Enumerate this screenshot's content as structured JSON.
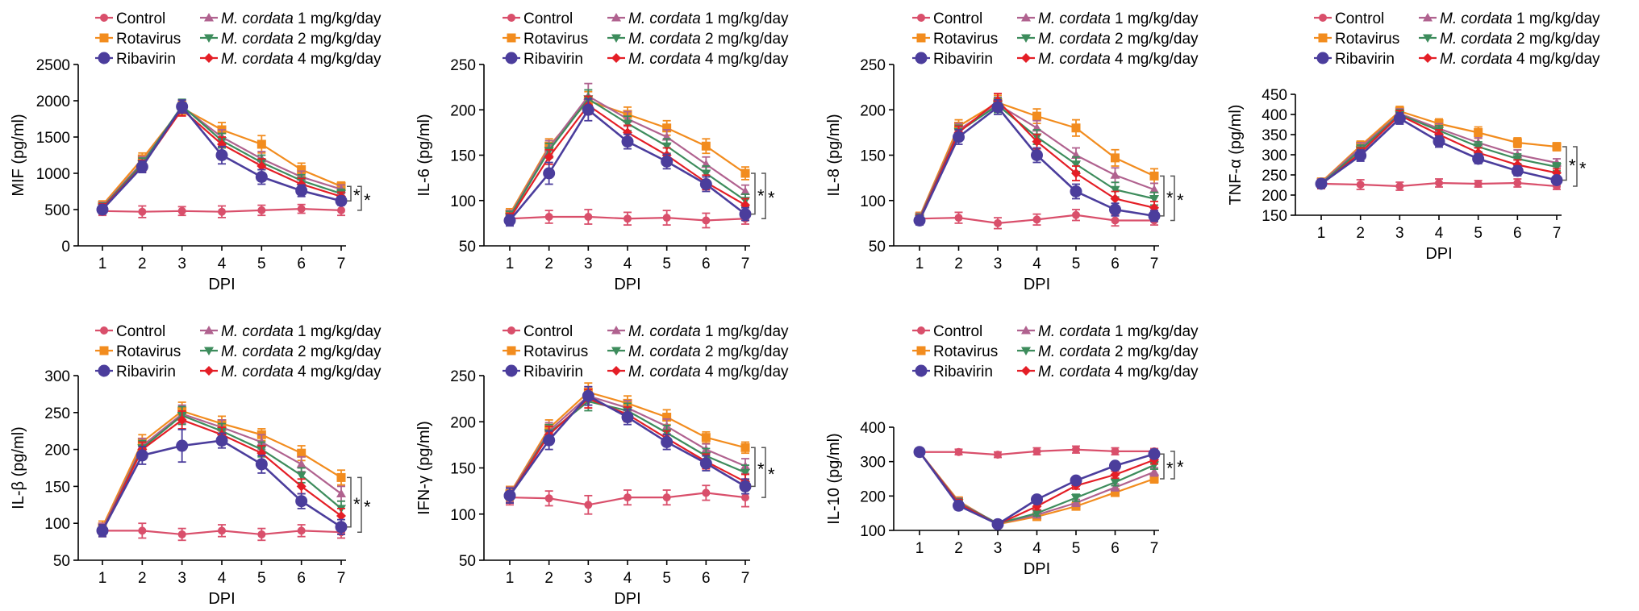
{
  "legend": {
    "entries": [
      {
        "key": "control",
        "label": "Control",
        "italic": "",
        "suffix": ""
      },
      {
        "key": "rota",
        "label": "Rotavirus",
        "italic": "",
        "suffix": ""
      },
      {
        "key": "riba",
        "label": "Ribavirin",
        "italic": "",
        "suffix": ""
      },
      {
        "key": "mc1",
        "label": "",
        "italic": "M. cordata",
        "suffix": " 1 mg/kg/day"
      },
      {
        "key": "mc2",
        "label": "",
        "italic": "M. cordata",
        "suffix": " 2 mg/kg/day"
      },
      {
        "key": "mc4",
        "label": "",
        "italic": "M. cordata",
        "suffix": " 4 mg/kg/day"
      }
    ]
  },
  "series_style": {
    "control": {
      "color": "#d94f6b",
      "marker": "circle"
    },
    "rota": {
      "color": "#f28c1e",
      "marker": "square"
    },
    "riba": {
      "color": "#4b3d9c",
      "marker": "bigcircle"
    },
    "mc1": {
      "color": "#b0628f",
      "marker": "triangle-up"
    },
    "mc2": {
      "color": "#3d8c5c",
      "marker": "triangle-down"
    },
    "mc4": {
      "color": "#e41e26",
      "marker": "diamond"
    }
  },
  "significance": "*",
  "chart_data": [
    {
      "type": "line",
      "xlabel": "DPI",
      "ylabel": "MIF (pg/ml)",
      "x": [
        1,
        2,
        3,
        4,
        5,
        6,
        7
      ],
      "ylim": [
        0,
        2500
      ],
      "yticks": [
        0,
        500,
        1000,
        1500,
        2000,
        2500
      ],
      "series": [
        {
          "key": "control",
          "values": [
            480,
            470,
            480,
            470,
            490,
            510,
            490
          ],
          "err": [
            60,
            80,
            60,
            80,
            70,
            60,
            70
          ]
        },
        {
          "key": "rota",
          "values": [
            560,
            1200,
            1900,
            1600,
            1400,
            1050,
            820
          ],
          "err": [
            60,
            80,
            90,
            100,
            120,
            90,
            60
          ]
        },
        {
          "key": "mc1",
          "values": [
            540,
            1150,
            1920,
            1500,
            1200,
            950,
            780
          ],
          "err": [
            60,
            80,
            90,
            100,
            100,
            80,
            60
          ]
        },
        {
          "key": "mc2",
          "values": [
            530,
            1130,
            1930,
            1450,
            1150,
            900,
            720
          ],
          "err": [
            60,
            80,
            90,
            100,
            100,
            80,
            60
          ]
        },
        {
          "key": "mc4",
          "values": [
            520,
            1100,
            1880,
            1400,
            1100,
            850,
            680
          ],
          "err": [
            60,
            80,
            90,
            100,
            100,
            80,
            60
          ]
        },
        {
          "key": "riba",
          "values": [
            500,
            1090,
            1920,
            1250,
            950,
            760,
            620
          ],
          "err": [
            60,
            80,
            90,
            120,
            100,
            80,
            60
          ]
        }
      ]
    },
    {
      "type": "line",
      "xlabel": "DPI",
      "ylabel": "IL-6 (pg/ml)",
      "x": [
        1,
        2,
        3,
        4,
        5,
        6,
        7
      ],
      "ylim": [
        50,
        250
      ],
      "yticks": [
        50,
        100,
        150,
        200,
        250
      ],
      "series": [
        {
          "key": "control",
          "values": [
            80,
            82,
            82,
            80,
            81,
            78,
            80
          ],
          "err": [
            6,
            7,
            8,
            7,
            8,
            8,
            6
          ]
        },
        {
          "key": "rota",
          "values": [
            85,
            160,
            210,
            195,
            180,
            160,
            130
          ],
          "err": [
            6,
            8,
            10,
            8,
            8,
            8,
            7
          ]
        },
        {
          "key": "mc1",
          "values": [
            83,
            158,
            215,
            190,
            170,
            140,
            110
          ],
          "err": [
            6,
            8,
            14,
            8,
            8,
            8,
            7
          ]
        },
        {
          "key": "mc2",
          "values": [
            82,
            155,
            212,
            185,
            160,
            130,
            100
          ],
          "err": [
            6,
            8,
            10,
            8,
            8,
            8,
            7
          ]
        },
        {
          "key": "mc4",
          "values": [
            80,
            148,
            205,
            175,
            150,
            120,
            95
          ],
          "err": [
            6,
            8,
            10,
            8,
            8,
            8,
            7
          ]
        },
        {
          "key": "riba",
          "values": [
            78,
            130,
            200,
            165,
            143,
            118,
            85
          ],
          "err": [
            6,
            12,
            12,
            8,
            8,
            8,
            7
          ]
        }
      ]
    },
    {
      "type": "line",
      "xlabel": "DPI",
      "ylabel": "IL-8 (pg/ml)",
      "x": [
        1,
        2,
        3,
        4,
        5,
        6,
        7
      ],
      "ylim": [
        50,
        250
      ],
      "yticks": [
        50,
        100,
        150,
        200,
        250
      ],
      "series": [
        {
          "key": "control",
          "values": [
            80,
            81,
            75,
            79,
            84,
            78,
            78
          ],
          "err": [
            5,
            6,
            6,
            6,
            6,
            6,
            5
          ]
        },
        {
          "key": "rota",
          "values": [
            82,
            182,
            208,
            193,
            180,
            147,
            127
          ],
          "err": [
            5,
            7,
            8,
            8,
            9,
            9,
            8
          ]
        },
        {
          "key": "mc1",
          "values": [
            81,
            178,
            206,
            180,
            150,
            128,
            112
          ],
          "err": [
            5,
            7,
            8,
            8,
            8,
            8,
            7
          ]
        },
        {
          "key": "mc2",
          "values": [
            80,
            176,
            205,
            170,
            140,
            112,
            102
          ],
          "err": [
            5,
            7,
            8,
            8,
            8,
            8,
            7
          ]
        },
        {
          "key": "mc4",
          "values": [
            79,
            175,
            210,
            165,
            130,
            102,
            92
          ],
          "err": [
            5,
            7,
            8,
            8,
            8,
            8,
            7
          ]
        },
        {
          "key": "riba",
          "values": [
            78,
            170,
            203,
            150,
            110,
            90,
            83
          ],
          "err": [
            5,
            8,
            8,
            8,
            8,
            7,
            6
          ]
        }
      ]
    },
    {
      "type": "line",
      "xlabel": "DPI",
      "ylabel": "TNF-α (pg/ml)",
      "x": [
        1,
        2,
        3,
        4,
        5,
        6,
        7
      ],
      "ylim": [
        150,
        450
      ],
      "yticks": [
        150,
        200,
        250,
        300,
        350,
        400,
        450
      ],
      "series": [
        {
          "key": "control",
          "values": [
            228,
            226,
            222,
            230,
            228,
            230,
            222
          ],
          "err": [
            10,
            12,
            10,
            10,
            8,
            10,
            8
          ]
        },
        {
          "key": "rota",
          "values": [
            232,
            322,
            408,
            377,
            355,
            330,
            320
          ],
          "err": [
            10,
            12,
            12,
            12,
            14,
            12,
            10
          ]
        },
        {
          "key": "mc1",
          "values": [
            230,
            318,
            402,
            365,
            330,
            300,
            280
          ],
          "err": [
            10,
            12,
            12,
            12,
            12,
            12,
            10
          ]
        },
        {
          "key": "mc2",
          "values": [
            228,
            312,
            400,
            360,
            320,
            290,
            270
          ],
          "err": [
            10,
            12,
            12,
            12,
            12,
            12,
            10
          ]
        },
        {
          "key": "mc4",
          "values": [
            226,
            305,
            398,
            350,
            305,
            275,
            255
          ],
          "err": [
            10,
            12,
            12,
            12,
            12,
            12,
            10
          ]
        },
        {
          "key": "riba",
          "values": [
            228,
            298,
            390,
            333,
            290,
            260,
            237
          ],
          "err": [
            10,
            14,
            14,
            14,
            12,
            12,
            10
          ]
        }
      ]
    },
    {
      "type": "line",
      "xlabel": "DPI",
      "ylabel": "IL-β (pg/ml)",
      "x": [
        1,
        2,
        3,
        4,
        5,
        6,
        7
      ],
      "ylim": [
        50,
        300
      ],
      "yticks": [
        50,
        100,
        150,
        200,
        250,
        300
      ],
      "series": [
        {
          "key": "control",
          "values": [
            90,
            90,
            85,
            90,
            85,
            90,
            88
          ],
          "err": [
            8,
            10,
            8,
            8,
            8,
            8,
            8
          ]
        },
        {
          "key": "rota",
          "values": [
            95,
            210,
            252,
            235,
            220,
            195,
            162
          ],
          "err": [
            8,
            10,
            12,
            10,
            8,
            10,
            10
          ]
        },
        {
          "key": "mc1",
          "values": [
            92,
            205,
            248,
            230,
            210,
            180,
            140
          ],
          "err": [
            8,
            10,
            12,
            10,
            10,
            10,
            10
          ]
        },
        {
          "key": "mc2",
          "values": [
            90,
            202,
            246,
            225,
            200,
            165,
            120
          ],
          "err": [
            8,
            10,
            12,
            10,
            10,
            10,
            10
          ]
        },
        {
          "key": "mc4",
          "values": [
            90,
            200,
            240,
            220,
            195,
            150,
            110
          ],
          "err": [
            8,
            10,
            12,
            10,
            10,
            10,
            10
          ]
        },
        {
          "key": "riba",
          "values": [
            90,
            192,
            205,
            212,
            180,
            130,
            95
          ],
          "err": [
            8,
            12,
            22,
            10,
            12,
            10,
            10
          ]
        }
      ]
    },
    {
      "type": "line",
      "xlabel": "DPI",
      "ylabel": "IFN-γ (pg/ml)",
      "x": [
        1,
        2,
        3,
        4,
        5,
        6,
        7
      ],
      "ylim": [
        50,
        250
      ],
      "yticks": [
        50,
        100,
        150,
        200,
        250
      ],
      "series": [
        {
          "key": "control",
          "values": [
            118,
            117,
            110,
            118,
            118,
            123,
            118
          ],
          "err": [
            8,
            8,
            10,
            8,
            8,
            8,
            10
          ]
        },
        {
          "key": "rota",
          "values": [
            122,
            193,
            232,
            220,
            205,
            183,
            172
          ],
          "err": [
            8,
            9,
            10,
            8,
            8,
            6,
            6
          ]
        },
        {
          "key": "mc1",
          "values": [
            121,
            190,
            228,
            215,
            195,
            170,
            152
          ],
          "err": [
            8,
            9,
            10,
            8,
            8,
            6,
            8
          ]
        },
        {
          "key": "mc2",
          "values": [
            120,
            188,
            222,
            212,
            188,
            163,
            145
          ],
          "err": [
            8,
            9,
            10,
            8,
            8,
            8,
            8
          ]
        },
        {
          "key": "mc4",
          "values": [
            120,
            186,
            225,
            208,
            182,
            157,
            135
          ],
          "err": [
            8,
            9,
            10,
            8,
            8,
            8,
            8
          ]
        },
        {
          "key": "riba",
          "values": [
            120,
            180,
            228,
            205,
            178,
            155,
            130
          ],
          "err": [
            8,
            10,
            10,
            8,
            8,
            8,
            8
          ]
        }
      ]
    },
    {
      "type": "line",
      "xlabel": "DPI",
      "ylabel": "IL-10 (pg/ml)",
      "x": [
        1,
        2,
        3,
        4,
        5,
        6,
        7
      ],
      "ylim": [
        100,
        400
      ],
      "yticks": [
        100,
        200,
        300,
        400
      ],
      "series": [
        {
          "key": "control",
          "values": [
            328,
            328,
            320,
            330,
            335,
            330,
            330
          ],
          "err": [
            8,
            8,
            8,
            10,
            10,
            10,
            8
          ]
        },
        {
          "key": "rota",
          "values": [
            328,
            185,
            118,
            140,
            170,
            210,
            250
          ],
          "err": [
            8,
            12,
            8,
            8,
            10,
            10,
            12
          ]
        },
        {
          "key": "mc1",
          "values": [
            328,
            182,
            120,
            145,
            180,
            225,
            270
          ],
          "err": [
            8,
            12,
            8,
            8,
            10,
            10,
            12
          ]
        },
        {
          "key": "mc2",
          "values": [
            328,
            180,
            120,
            150,
            195,
            240,
            290
          ],
          "err": [
            8,
            12,
            8,
            8,
            10,
            10,
            12
          ]
        },
        {
          "key": "mc4",
          "values": [
            328,
            178,
            118,
            170,
            230,
            262,
            305
          ],
          "err": [
            8,
            12,
            8,
            10,
            10,
            10,
            12
          ]
        },
        {
          "key": "riba",
          "values": [
            328,
            172,
            118,
            190,
            245,
            288,
            322
          ],
          "err": [
            8,
            12,
            8,
            10,
            10,
            10,
            12
          ]
        }
      ]
    }
  ]
}
